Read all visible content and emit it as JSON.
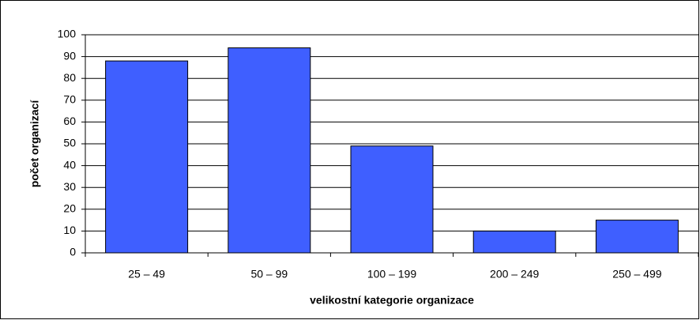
{
  "chart_data": {
    "type": "bar",
    "categories": [
      "25 – 49",
      "50 – 99",
      "100 – 199",
      "200 – 249",
      "250 – 499"
    ],
    "values": [
      88,
      94,
      49,
      10,
      15
    ],
    "color": "#3f5fff",
    "xlabel": "velikostní kategorie organizace",
    "ylabel": "počet organizací",
    "ylim": [
      0,
      100
    ],
    "yticks": [
      0,
      10,
      20,
      30,
      40,
      50,
      60,
      70,
      80,
      90,
      100
    ],
    "grid": true
  }
}
